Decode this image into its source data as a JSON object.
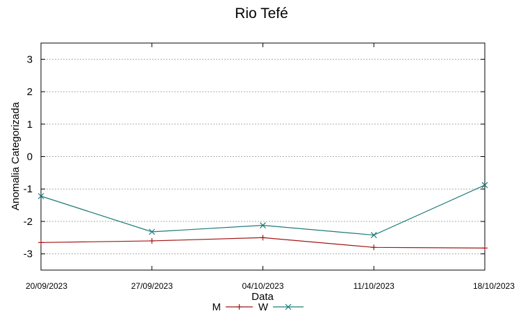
{
  "chart_data": {
    "type": "line",
    "title": "Rio Tefé",
    "xlabel": "Data",
    "ylabel": "Anomalia Categorizada",
    "categories": [
      "20/09/2023",
      "27/09/2023",
      "04/10/2023",
      "11/10/2023",
      "18/10/2023"
    ],
    "ylim": [
      -3.5,
      3.5
    ],
    "yticks": [
      -3,
      -2,
      -1,
      0,
      1,
      2,
      3
    ],
    "grid": true,
    "legend_position": "bottom",
    "series": [
      {
        "name": "M",
        "values": [
          -2.65,
          -2.6,
          -2.5,
          -2.8,
          -2.82
        ],
        "color": "#a31515",
        "marker": "plus"
      },
      {
        "name": "W",
        "values": [
          -1.22,
          -2.32,
          -2.12,
          -2.42,
          -0.88
        ],
        "color": "#1a7a78",
        "marker": "cross"
      }
    ]
  }
}
